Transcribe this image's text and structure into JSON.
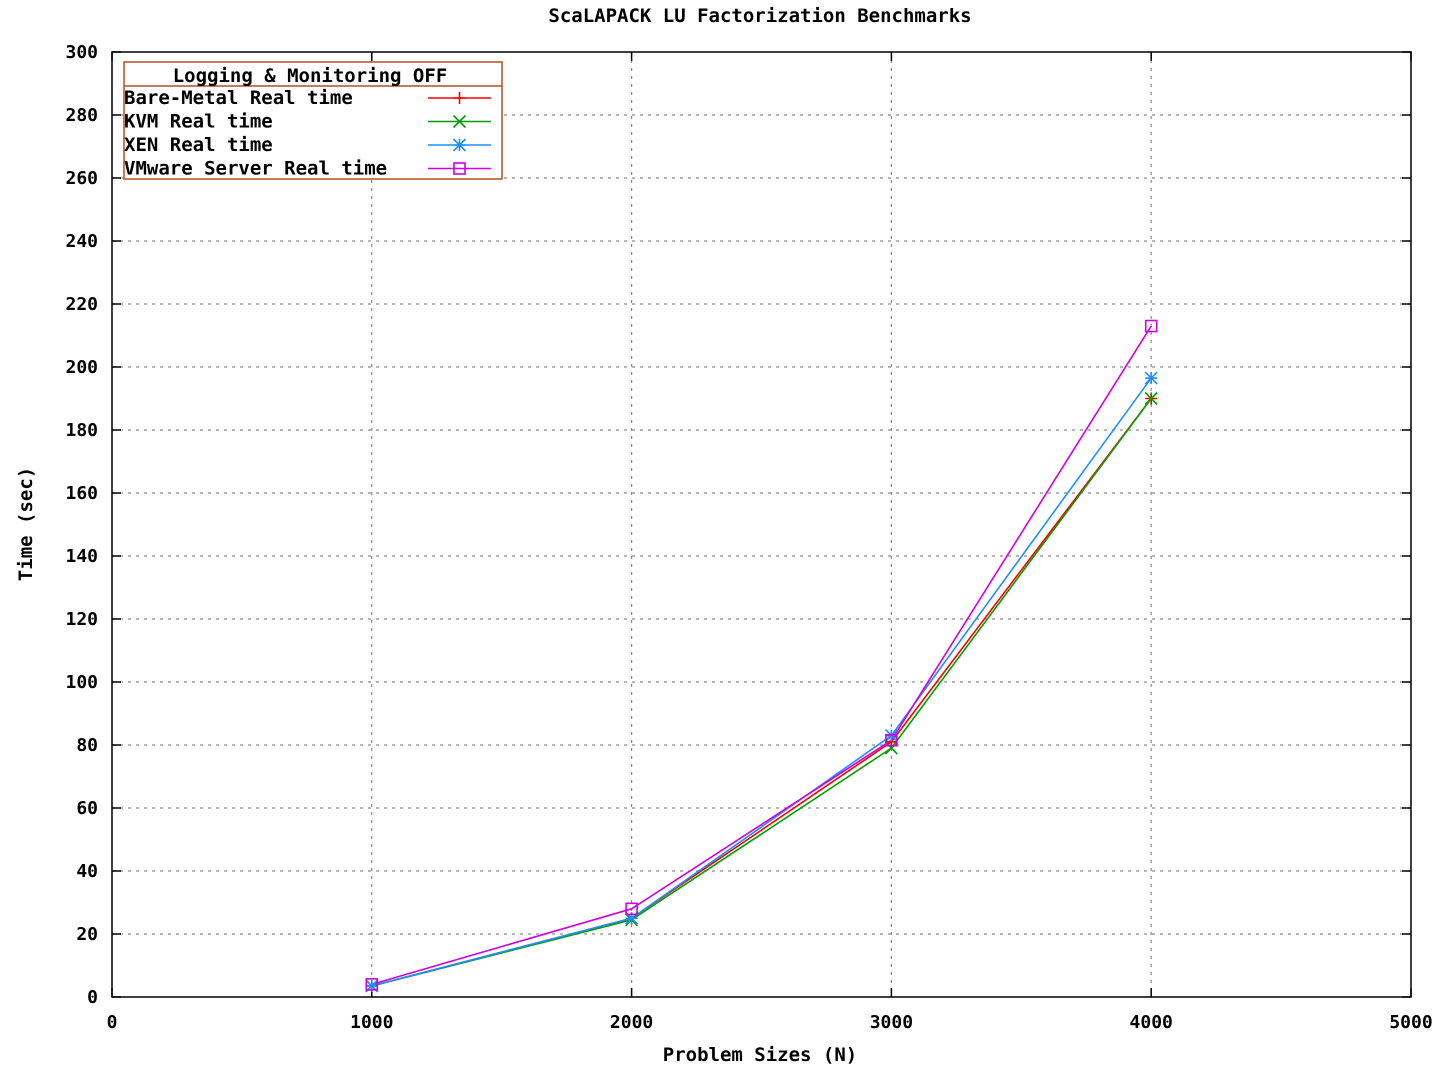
{
  "chart_data": {
    "type": "line",
    "title": "ScaLAPACK LU Factorization Benchmarks",
    "xlabel": "Problem Sizes (N)",
    "ylabel": "Time (sec)",
    "xlim": [
      0,
      5000
    ],
    "ylim": [
      0,
      300
    ],
    "xticks": [
      0,
      1000,
      2000,
      3000,
      4000,
      5000
    ],
    "yticks": [
      0,
      20,
      40,
      60,
      80,
      100,
      120,
      140,
      160,
      180,
      200,
      220,
      240,
      260,
      280,
      300
    ],
    "grid": true,
    "legend": {
      "title": "Logging & Monitoring OFF",
      "position": "top-left",
      "border_color": "#b5501e"
    },
    "x": [
      1000,
      2000,
      3000,
      4000
    ],
    "series": [
      {
        "name": "Bare-Metal Real time",
        "color": "#ff0000",
        "marker": "plus",
        "values": [
          3.5,
          25,
          81,
          190
        ]
      },
      {
        "name": "KVM Real time",
        "color": "#00a000",
        "marker": "x",
        "values": [
          3.5,
          24.5,
          79,
          190
        ]
      },
      {
        "name": "XEN Real time",
        "color": "#1e8fff",
        "marker": "star",
        "values": [
          3.5,
          25,
          83,
          196.5
        ]
      },
      {
        "name": "VMware Server Real time",
        "color": "#d000e0",
        "marker": "square",
        "values": [
          4,
          28,
          81.5,
          213
        ]
      }
    ]
  }
}
